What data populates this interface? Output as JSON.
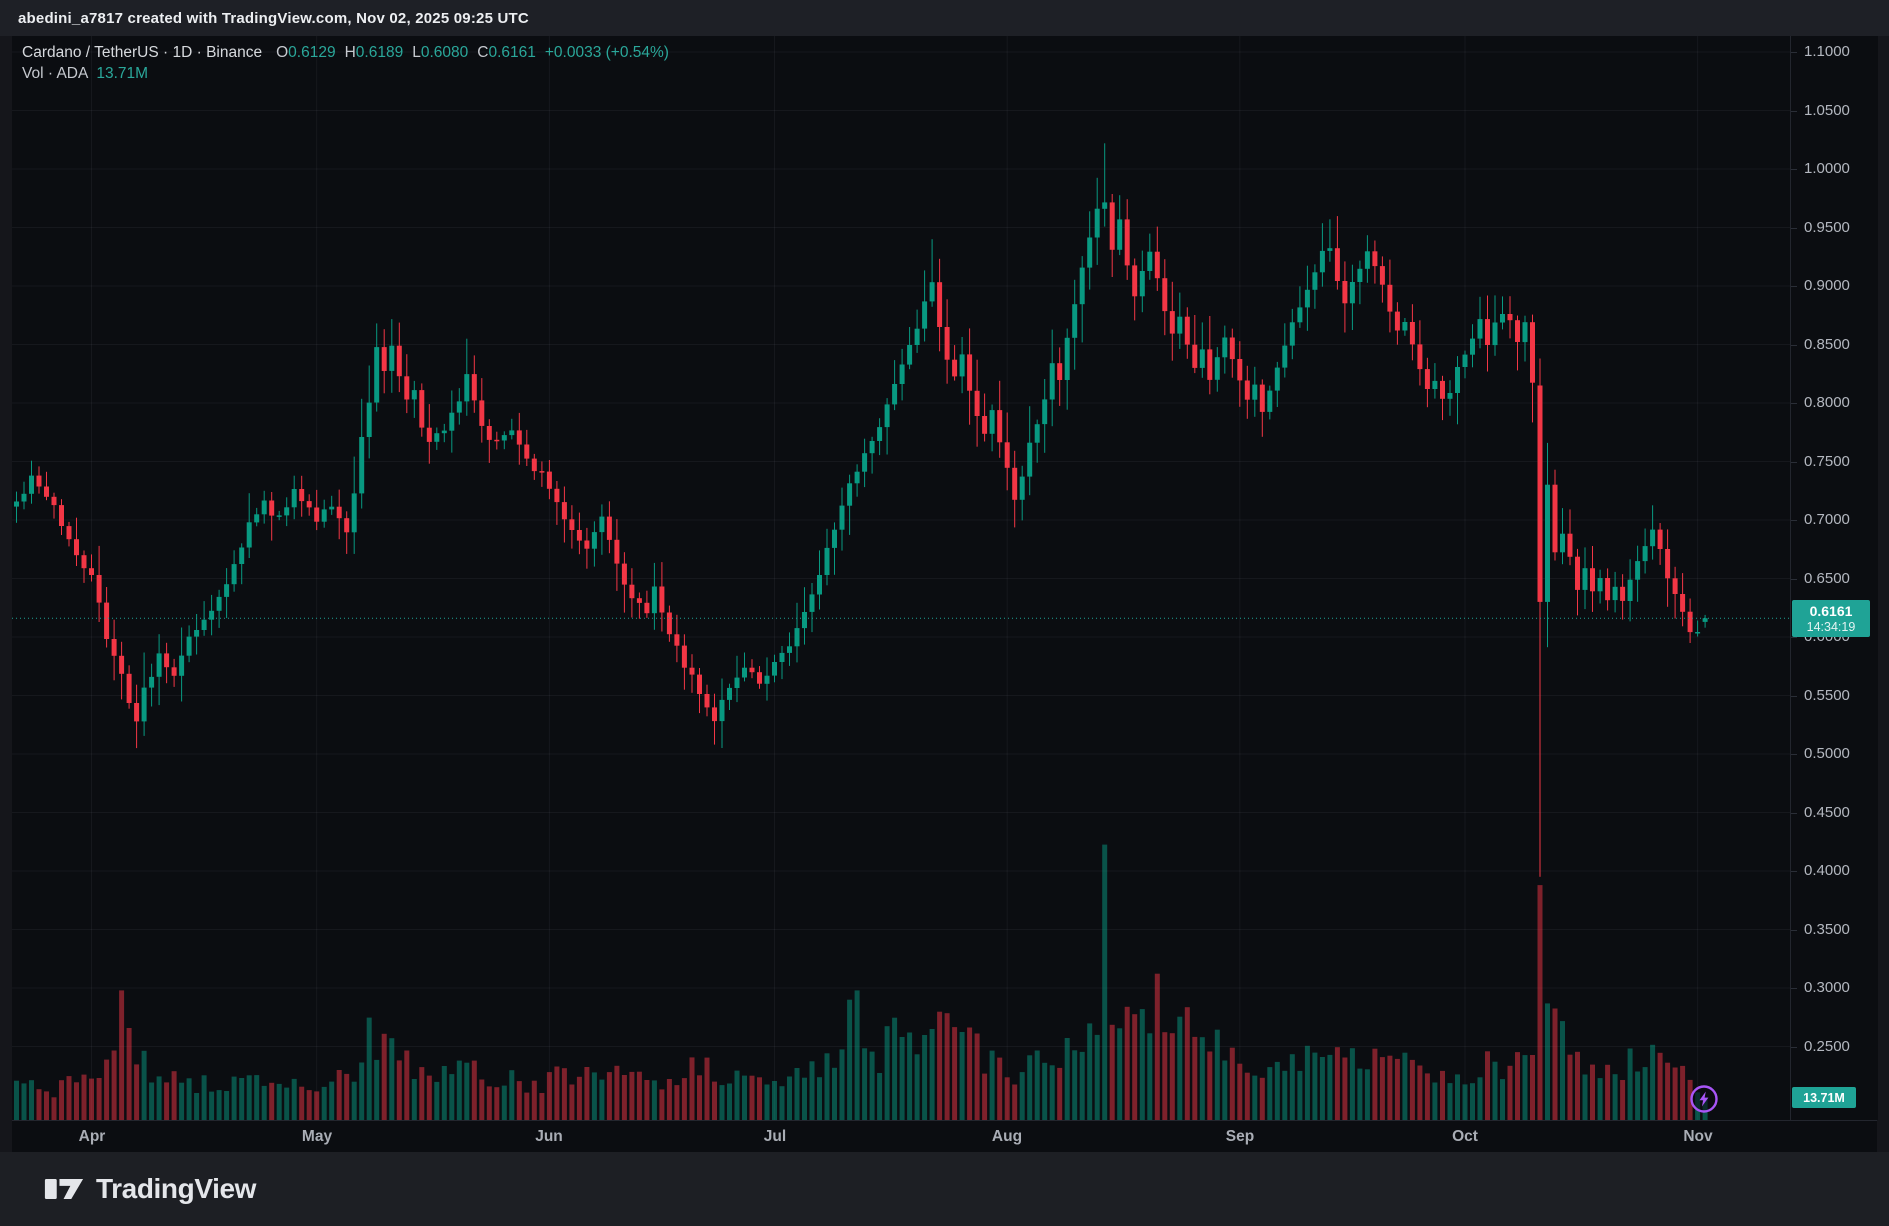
{
  "attribution_bar": {
    "text": "abedini_a7817 created with TradingView.com, Nov 02, 2025 09:25 UTC"
  },
  "legend": {
    "symbol_title": "Cardano / TetherUS · 1D · Binance",
    "ohlc": [
      {
        "label": "O",
        "value": "0.6129"
      },
      {
        "label": "H",
        "value": "0.6189"
      },
      {
        "label": "L",
        "value": "0.6080"
      },
      {
        "label": "C",
        "value": "0.6161"
      }
    ],
    "change": "+0.0033 (+0.54%)",
    "volume_row": {
      "label": "Vol · ADA",
      "value": "13.71M"
    }
  },
  "price_label": {
    "price": "0.6161",
    "countdown": "14:34:19"
  },
  "volume_label": {
    "value": "13.71M"
  },
  "logo": {
    "text": "TradingView"
  },
  "colors": {
    "up": "#089981",
    "down": "#f23645",
    "accent_teal": "#1fa396",
    "boost_purple": "#a855f7",
    "grid": "rgba(240,243,250,0.05)"
  },
  "chart_data": {
    "type": "candlestick+volume",
    "symbol": "Cardano / TetherUS",
    "exchange": "Binance",
    "timeframe": "1D",
    "last_candle": {
      "open": 0.6129,
      "high": 0.6189,
      "low": 0.608,
      "close": 0.6161,
      "volume_m": 13.71,
      "change": 0.0033,
      "change_pct": 0.54
    },
    "current_price": 0.6161,
    "countdown": "14:34:19",
    "y_axis": {
      "min": 0.25,
      "max": 1.1,
      "step": 0.05,
      "label_decimals": 4
    },
    "x_axis_months": [
      [
        "Apr",
        10
      ],
      [
        "May",
        40
      ],
      [
        "Jun",
        71
      ],
      [
        "Jul",
        101
      ],
      [
        "Aug",
        132
      ],
      [
        "Sep",
        163
      ],
      [
        "Oct",
        193
      ],
      [
        "Nov",
        224
      ]
    ],
    "num_days": 226,
    "render_seed": 42,
    "close_keypoints": [
      [
        0,
        0.715
      ],
      [
        2,
        0.735
      ],
      [
        5,
        0.71
      ],
      [
        8,
        0.67
      ],
      [
        10,
        0.655
      ],
      [
        12,
        0.6
      ],
      [
        14,
        0.565
      ],
      [
        16,
        0.528
      ],
      [
        17,
        0.555
      ],
      [
        19,
        0.582
      ],
      [
        21,
        0.565
      ],
      [
        23,
        0.6
      ],
      [
        25,
        0.615
      ],
      [
        27,
        0.635
      ],
      [
        29,
        0.66
      ],
      [
        31,
        0.695
      ],
      [
        33,
        0.715
      ],
      [
        35,
        0.7
      ],
      [
        37,
        0.725
      ],
      [
        39,
        0.71
      ],
      [
        40,
        0.7
      ],
      [
        42,
        0.715
      ],
      [
        44,
        0.69
      ],
      [
        45,
        0.72
      ],
      [
        46,
        0.77
      ],
      [
        47,
        0.8
      ],
      [
        48,
        0.845
      ],
      [
        49,
        0.83
      ],
      [
        50,
        0.845
      ],
      [
        51,
        0.82
      ],
      [
        52,
        0.8
      ],
      [
        53,
        0.81
      ],
      [
        54,
        0.78
      ],
      [
        55,
        0.765
      ],
      [
        57,
        0.78
      ],
      [
        59,
        0.8
      ],
      [
        60,
        0.825
      ],
      [
        61,
        0.805
      ],
      [
        62,
        0.78
      ],
      [
        64,
        0.765
      ],
      [
        66,
        0.775
      ],
      [
        68,
        0.75
      ],
      [
        70,
        0.74
      ],
      [
        72,
        0.715
      ],
      [
        74,
        0.69
      ],
      [
        76,
        0.675
      ],
      [
        78,
        0.7
      ],
      [
        80,
        0.66
      ],
      [
        82,
        0.635
      ],
      [
        84,
        0.62
      ],
      [
        85,
        0.64
      ],
      [
        86,
        0.62
      ],
      [
        88,
        0.59
      ],
      [
        90,
        0.565
      ],
      [
        92,
        0.54
      ],
      [
        93,
        0.528
      ],
      [
        95,
        0.56
      ],
      [
        97,
        0.575
      ],
      [
        99,
        0.56
      ],
      [
        101,
        0.575
      ],
      [
        103,
        0.595
      ],
      [
        105,
        0.625
      ],
      [
        107,
        0.655
      ],
      [
        109,
        0.695
      ],
      [
        111,
        0.73
      ],
      [
        113,
        0.755
      ],
      [
        115,
        0.78
      ],
      [
        117,
        0.815
      ],
      [
        119,
        0.85
      ],
      [
        121,
        0.885
      ],
      [
        122,
        0.9
      ],
      [
        123,
        0.865
      ],
      [
        124,
        0.84
      ],
      [
        125,
        0.82
      ],
      [
        126,
        0.845
      ],
      [
        127,
        0.81
      ],
      [
        128,
        0.785
      ],
      [
        129,
        0.77
      ],
      [
        130,
        0.79
      ],
      [
        131,
        0.765
      ],
      [
        132,
        0.745
      ],
      [
        133,
        0.72
      ],
      [
        134,
        0.74
      ],
      [
        135,
        0.765
      ],
      [
        136,
        0.78
      ],
      [
        137,
        0.805
      ],
      [
        138,
        0.835
      ],
      [
        139,
        0.82
      ],
      [
        140,
        0.855
      ],
      [
        141,
        0.885
      ],
      [
        142,
        0.915
      ],
      [
        143,
        0.94
      ],
      [
        144,
        0.965
      ],
      [
        145,
        0.975
      ],
      [
        146,
        0.935
      ],
      [
        147,
        0.955
      ],
      [
        148,
        0.915
      ],
      [
        149,
        0.89
      ],
      [
        150,
        0.91
      ],
      [
        151,
        0.93
      ],
      [
        152,
        0.905
      ],
      [
        153,
        0.875
      ],
      [
        154,
        0.858
      ],
      [
        155,
        0.875
      ],
      [
        156,
        0.852
      ],
      [
        157,
        0.83
      ],
      [
        158,
        0.845
      ],
      [
        159,
        0.822
      ],
      [
        160,
        0.84
      ],
      [
        161,
        0.855
      ],
      [
        162,
        0.838
      ],
      [
        163,
        0.818
      ],
      [
        164,
        0.8
      ],
      [
        165,
        0.815
      ],
      [
        166,
        0.795
      ],
      [
        167,
        0.812
      ],
      [
        168,
        0.832
      ],
      [
        169,
        0.852
      ],
      [
        170,
        0.868
      ],
      [
        171,
        0.882
      ],
      [
        172,
        0.898
      ],
      [
        173,
        0.912
      ],
      [
        174,
        0.928
      ],
      [
        175,
        0.935
      ],
      [
        176,
        0.908
      ],
      [
        177,
        0.885
      ],
      [
        178,
        0.902
      ],
      [
        179,
        0.918
      ],
      [
        180,
        0.928
      ],
      [
        181,
        0.918
      ],
      [
        182,
        0.898
      ],
      [
        183,
        0.878
      ],
      [
        184,
        0.858
      ],
      [
        185,
        0.872
      ],
      [
        186,
        0.848
      ],
      [
        187,
        0.825
      ],
      [
        188,
        0.81
      ],
      [
        189,
        0.822
      ],
      [
        190,
        0.8
      ],
      [
        191,
        0.812
      ],
      [
        192,
        0.828
      ],
      [
        193,
        0.842
      ],
      [
        194,
        0.856
      ],
      [
        195,
        0.868
      ],
      [
        196,
        0.852
      ],
      [
        197,
        0.866
      ],
      [
        198,
        0.876
      ],
      [
        199,
        0.868
      ],
      [
        200,
        0.855
      ],
      [
        201,
        0.868
      ],
      [
        202,
        0.815
      ],
      [
        203,
        0.63
      ],
      [
        204,
        0.732
      ],
      [
        205,
        0.672
      ],
      [
        206,
        0.692
      ],
      [
        207,
        0.665
      ],
      [
        208,
        0.642
      ],
      [
        209,
        0.658
      ],
      [
        210,
        0.636
      ],
      [
        211,
        0.648
      ],
      [
        212,
        0.628
      ],
      [
        213,
        0.642
      ],
      [
        214,
        0.632
      ],
      [
        215,
        0.648
      ],
      [
        216,
        0.662
      ],
      [
        217,
        0.678
      ],
      [
        218,
        0.688
      ],
      [
        219,
        0.672
      ],
      [
        220,
        0.652
      ],
      [
        221,
        0.635
      ],
      [
        222,
        0.618
      ],
      [
        223,
        0.606
      ],
      [
        224,
        0.608
      ],
      [
        225,
        0.6161
      ]
    ],
    "candle_overrides": {
      "16": {
        "l": 0.505
      },
      "48": {
        "h": 0.868
      },
      "60": {
        "h": 0.855
      },
      "93": {
        "l": 0.508
      },
      "122": {
        "h": 0.94
      },
      "145": {
        "h": 1.022
      },
      "175": {
        "h": 0.957
      },
      "203": {
        "o": 0.815,
        "h": 0.838,
        "l": 0.395,
        "c": 0.63
      },
      "225": {
        "o": 0.6129,
        "h": 0.6189,
        "l": 0.608,
        "c": 0.6161
      }
    },
    "volume_keypoints_m": [
      [
        0,
        22
      ],
      [
        4,
        18
      ],
      [
        8,
        24
      ],
      [
        12,
        34
      ],
      [
        14,
        80
      ],
      [
        15,
        62
      ],
      [
        16,
        46
      ],
      [
        18,
        30
      ],
      [
        20,
        26
      ],
      [
        24,
        22
      ],
      [
        28,
        20
      ],
      [
        31,
        26
      ],
      [
        34,
        22
      ],
      [
        38,
        20
      ],
      [
        42,
        24
      ],
      [
        45,
        30
      ],
      [
        46,
        38
      ],
      [
        47,
        52
      ],
      [
        48,
        50
      ],
      [
        50,
        42
      ],
      [
        52,
        34
      ],
      [
        55,
        28
      ],
      [
        57,
        32
      ],
      [
        60,
        40
      ],
      [
        63,
        28
      ],
      [
        66,
        24
      ],
      [
        69,
        22
      ],
      [
        72,
        26
      ],
      [
        75,
        24
      ],
      [
        78,
        28
      ],
      [
        80,
        30
      ],
      [
        83,
        24
      ],
      [
        86,
        26
      ],
      [
        89,
        30
      ],
      [
        92,
        34
      ],
      [
        94,
        28
      ],
      [
        97,
        24
      ],
      [
        100,
        22
      ],
      [
        103,
        26
      ],
      [
        105,
        30
      ],
      [
        108,
        34
      ],
      [
        110,
        44
      ],
      [
        112,
        80
      ],
      [
        113,
        52
      ],
      [
        115,
        40
      ],
      [
        117,
        60
      ],
      [
        118,
        52
      ],
      [
        120,
        44
      ],
      [
        122,
        54
      ],
      [
        123,
        58
      ],
      [
        125,
        46
      ],
      [
        127,
        52
      ],
      [
        129,
        38
      ],
      [
        131,
        32
      ],
      [
        133,
        30
      ],
      [
        135,
        34
      ],
      [
        137,
        36
      ],
      [
        139,
        40
      ],
      [
        141,
        46
      ],
      [
        143,
        58
      ],
      [
        144,
        75
      ],
      [
        145,
        170
      ],
      [
        146,
        80
      ],
      [
        147,
        60
      ],
      [
        149,
        62
      ],
      [
        150,
        65
      ],
      [
        152,
        72
      ],
      [
        154,
        48
      ],
      [
        156,
        54
      ],
      [
        158,
        40
      ],
      [
        160,
        44
      ],
      [
        162,
        36
      ],
      [
        164,
        30
      ],
      [
        166,
        28
      ],
      [
        168,
        32
      ],
      [
        170,
        38
      ],
      [
        172,
        36
      ],
      [
        174,
        42
      ],
      [
        175,
        50
      ],
      [
        177,
        38
      ],
      [
        179,
        34
      ],
      [
        181,
        36
      ],
      [
        183,
        42
      ],
      [
        184,
        52
      ],
      [
        186,
        40
      ],
      [
        187,
        37
      ],
      [
        189,
        30
      ],
      [
        191,
        28
      ],
      [
        193,
        30
      ],
      [
        195,
        34
      ],
      [
        197,
        32
      ],
      [
        199,
        40
      ],
      [
        201,
        36
      ],
      [
        202,
        48
      ],
      [
        203,
        145
      ],
      [
        204,
        72
      ],
      [
        205,
        58
      ],
      [
        206,
        48
      ],
      [
        207,
        44
      ],
      [
        209,
        38
      ],
      [
        211,
        34
      ],
      [
        213,
        30
      ],
      [
        215,
        36
      ],
      [
        217,
        40
      ],
      [
        219,
        34
      ],
      [
        221,
        44
      ],
      [
        222,
        38
      ],
      [
        223,
        30
      ],
      [
        224,
        20
      ],
      [
        225,
        13.71
      ]
    ],
    "volume_exact_days": {
      "14": 80,
      "112": 80,
      "145": 170,
      "203": 145,
      "204": 72,
      "225": 13.71
    }
  }
}
